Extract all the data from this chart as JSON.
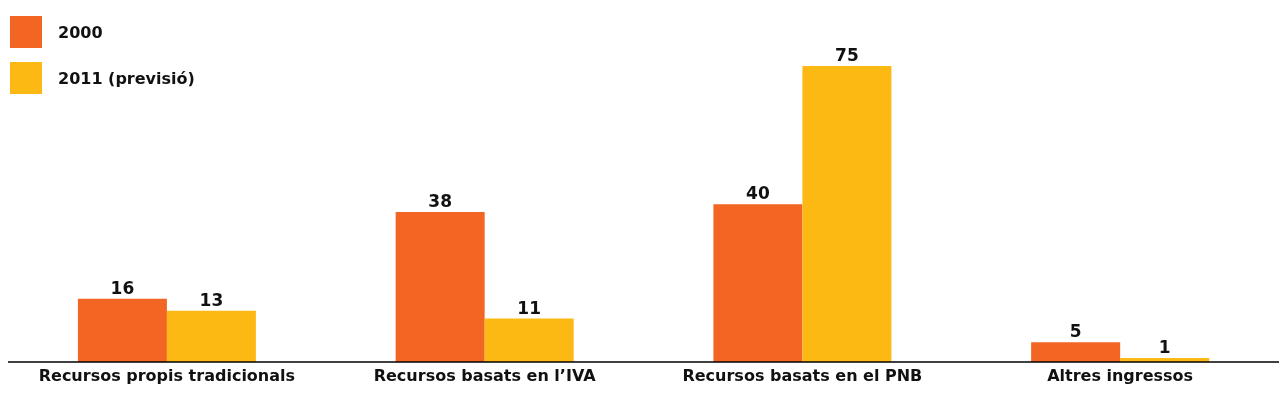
{
  "chart_data": {
    "type": "bar",
    "categories": [
      "Recursos propis tradicionals",
      "Recursos basats en l’IVA",
      "Recursos basats en el PNB",
      "Altres ingressos"
    ],
    "series": [
      {
        "name": "2000",
        "color": "#f26522",
        "values": [
          16,
          38,
          40,
          5
        ]
      },
      {
        "name": "2011 (previsió)",
        "color": "#fdb913",
        "values": [
          13,
          11,
          75,
          1
        ]
      }
    ],
    "data_labels": true,
    "legend": "top left",
    "grid": false
  }
}
